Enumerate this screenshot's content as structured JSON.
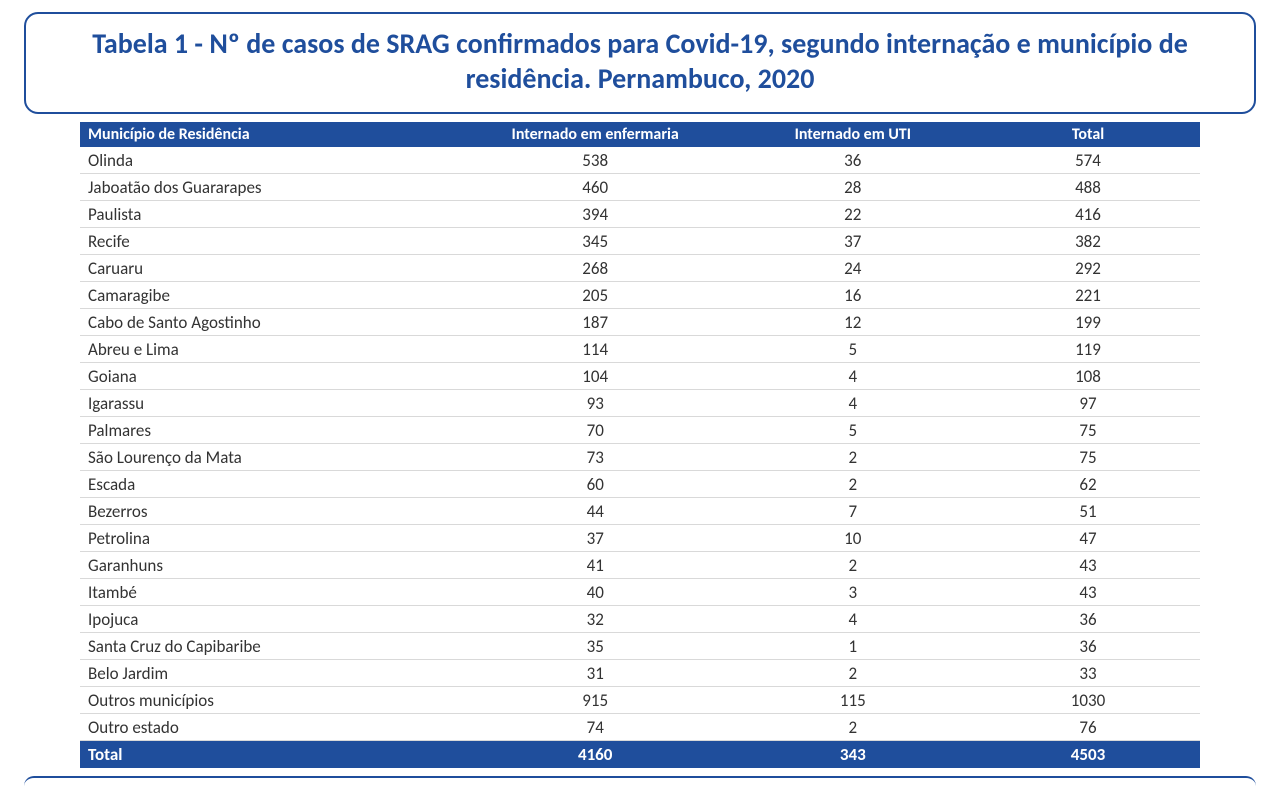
{
  "title": "Tabela 1 - Nº de casos de SRAG confirmados para Covid-19, segundo internação e município de residência. Pernambuco, 2020",
  "table": {
    "type": "table",
    "header_bg": "#1f4e9c",
    "header_fg": "#ffffff",
    "row_border": "#d9d9d9",
    "body_fg": "#333333",
    "title_color": "#1f4e9c",
    "columns": [
      {
        "label": "Município de Residência",
        "align": "left"
      },
      {
        "label": "Internado em enfermaria",
        "align": "center"
      },
      {
        "label": "Internado em UTI",
        "align": "center"
      },
      {
        "label": "Total",
        "align": "center"
      }
    ],
    "rows": [
      [
        "Olinda",
        538,
        36,
        574
      ],
      [
        "Jaboatão dos Guararapes",
        460,
        28,
        488
      ],
      [
        "Paulista",
        394,
        22,
        416
      ],
      [
        "Recife",
        345,
        37,
        382
      ],
      [
        "Caruaru",
        268,
        24,
        292
      ],
      [
        "Camaragibe",
        205,
        16,
        221
      ],
      [
        "Cabo de Santo Agostinho",
        187,
        12,
        199
      ],
      [
        "Abreu e Lima",
        114,
        5,
        119
      ],
      [
        "Goiana",
        104,
        4,
        108
      ],
      [
        "Igarassu",
        93,
        4,
        97
      ],
      [
        "Palmares",
        70,
        5,
        75
      ],
      [
        "São Lourenço da Mata",
        73,
        2,
        75
      ],
      [
        "Escada",
        60,
        2,
        62
      ],
      [
        "Bezerros",
        44,
        7,
        51
      ],
      [
        "Petrolina",
        37,
        10,
        47
      ],
      [
        "Garanhuns",
        41,
        2,
        43
      ],
      [
        "Itambé",
        40,
        3,
        43
      ],
      [
        "Ipojuca",
        32,
        4,
        36
      ],
      [
        "Santa Cruz do Capibaribe",
        35,
        1,
        36
      ],
      [
        "Belo Jardim",
        31,
        2,
        33
      ],
      [
        "Outros municípios",
        915,
        115,
        1030
      ],
      [
        "Outro estado",
        74,
        2,
        76
      ]
    ],
    "total_row": [
      "Total",
      4160,
      343,
      4503
    ]
  }
}
